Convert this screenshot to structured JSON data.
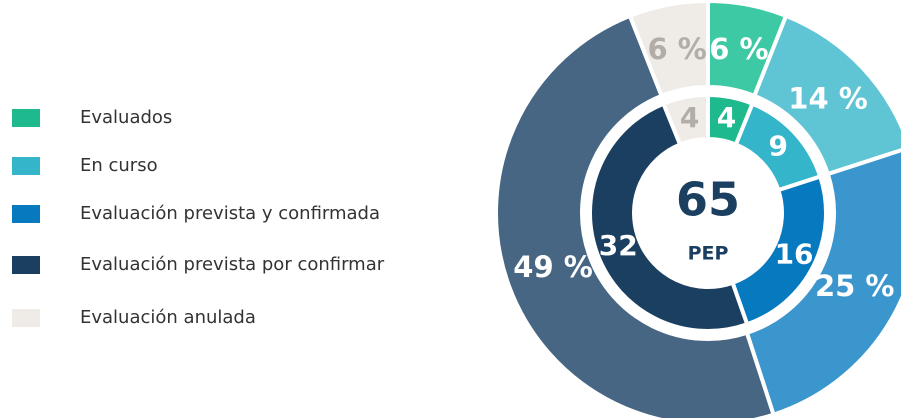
{
  "chart_data": {
    "type": "donut",
    "categories": [
      "Evaluados",
      "En curso",
      "Evaluación prevista y confirmada",
      "Evaluación prevista por confirmar",
      "Evaluación anulada"
    ],
    "colors": [
      "#1fb98e",
      "#34b5c9",
      "#0779bf",
      "#1b3f60",
      "#efebe6"
    ],
    "series": [
      {
        "values": [
          4,
          9,
          16,
          32,
          4
        ],
        "colors": [
          "#1fb98e",
          "#34b5c9",
          "#0779bf",
          "#1b3f60",
          "#efebe6"
        ]
      },
      {
        "values": [
          6,
          14,
          25,
          49,
          6
        ],
        "value_labels": [
          "6 %",
          "14 %",
          "25 %",
          "49 %",
          "6 %"
        ],
        "colors": [
          "#3cc9a3",
          "#5fc4d3",
          "#3a96cc",
          "#476683",
          "#efebe7"
        ]
      }
    ],
    "center_value": 65,
    "center_label": "PEP"
  }
}
